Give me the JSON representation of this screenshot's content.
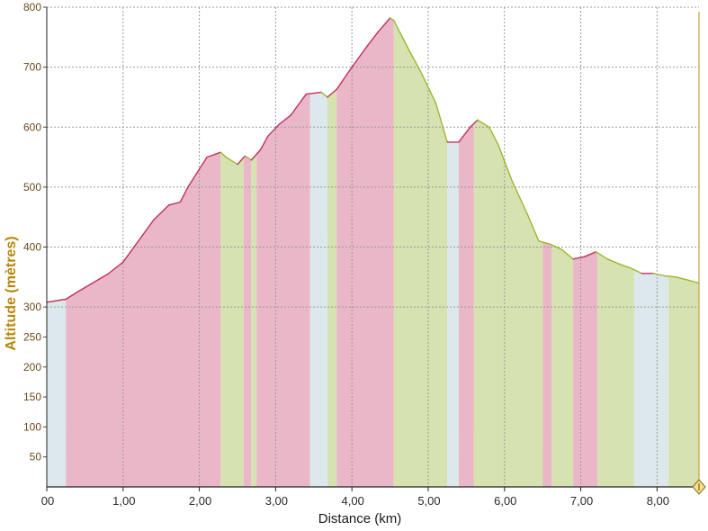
{
  "chart_data": {
    "type": "area",
    "title": "",
    "xlabel": "Distance (km)",
    "ylabel": "Altitude (mètres)",
    "xlim": [
      0,
      8.55
    ],
    "ylim": [
      0,
      800
    ],
    "x_tick_labels": [
      "00",
      "1,00",
      "2,00",
      "3,00",
      "4,00",
      "5,00",
      "6,00",
      "7,00",
      "8,00"
    ],
    "x_tick_values": [
      0,
      1,
      2,
      3,
      4,
      5,
      6,
      7,
      8
    ],
    "y_tick_labels": [
      "800",
      "700",
      "600",
      "500",
      "400",
      "300",
      "250",
      "200",
      "150",
      "100",
      "50"
    ],
    "y_tick_values": [
      800,
      700,
      600,
      500,
      400,
      300,
      250,
      200,
      150,
      100,
      50
    ],
    "grid": true,
    "profile": {
      "x": [
        0.0,
        0.25,
        0.4,
        0.6,
        0.8,
        1.0,
        1.2,
        1.4,
        1.6,
        1.75,
        1.85,
        2.0,
        2.1,
        2.28,
        2.35,
        2.5,
        2.6,
        2.68,
        2.8,
        2.9,
        3.05,
        3.2,
        3.4,
        3.6,
        3.68,
        3.8,
        4.0,
        4.2,
        4.35,
        4.5,
        4.55,
        4.6,
        4.75,
        4.9,
        5.1,
        5.25,
        5.4,
        5.55,
        5.65,
        5.8,
        5.92,
        6.1,
        6.3,
        6.45,
        6.6,
        6.75,
        6.9,
        7.05,
        7.2,
        7.35,
        7.5,
        7.65,
        7.8,
        7.95,
        8.1,
        8.25,
        8.4,
        8.55
      ],
      "altitude": [
        308,
        313,
        325,
        340,
        355,
        375,
        410,
        445,
        470,
        475,
        500,
        530,
        550,
        558,
        550,
        538,
        552,
        545,
        562,
        585,
        605,
        620,
        655,
        658,
        650,
        663,
        700,
        735,
        760,
        782,
        778,
        765,
        728,
        693,
        640,
        575,
        575,
        600,
        612,
        600,
        570,
        510,
        455,
        410,
        405,
        396,
        380,
        384,
        392,
        380,
        372,
        365,
        356,
        356,
        352,
        350,
        345,
        340
      ]
    },
    "segments": [
      {
        "from": 0.0,
        "to": 0.25,
        "color": "#dce8ec"
      },
      {
        "from": 0.25,
        "to": 2.28,
        "color": "#eab7c8"
      },
      {
        "from": 2.28,
        "to": 2.58,
        "color": "#d6e2b0"
      },
      {
        "from": 2.58,
        "to": 2.68,
        "color": "#eab7c8"
      },
      {
        "from": 2.68,
        "to": 2.75,
        "color": "#d6e2b0"
      },
      {
        "from": 2.75,
        "to": 3.45,
        "color": "#eab7c8"
      },
      {
        "from": 3.45,
        "to": 3.68,
        "color": "#dce8ec"
      },
      {
        "from": 3.68,
        "to": 3.8,
        "color": "#d6e2b0"
      },
      {
        "from": 3.8,
        "to": 4.55,
        "color": "#eab7c8"
      },
      {
        "from": 4.55,
        "to": 5.25,
        "color": "#d6e2b0"
      },
      {
        "from": 5.25,
        "to": 5.4,
        "color": "#dce8ec"
      },
      {
        "from": 5.4,
        "to": 5.6,
        "color": "#eab7c8"
      },
      {
        "from": 5.6,
        "to": 6.5,
        "color": "#d6e2b0"
      },
      {
        "from": 6.5,
        "to": 6.62,
        "color": "#eab7c8"
      },
      {
        "from": 6.62,
        "to": 6.9,
        "color": "#d6e2b0"
      },
      {
        "from": 6.9,
        "to": 7.22,
        "color": "#eab7c8"
      },
      {
        "from": 7.22,
        "to": 7.7,
        "color": "#d6e2b0"
      },
      {
        "from": 7.7,
        "to": 8.15,
        "color": "#dce8ec"
      },
      {
        "from": 8.15,
        "to": 8.55,
        "color": "#d6e2b0"
      }
    ],
    "line_colors": {
      "climb": "#c4305a",
      "descent": "#9ab832"
    },
    "cursor_x": 8.55
  }
}
